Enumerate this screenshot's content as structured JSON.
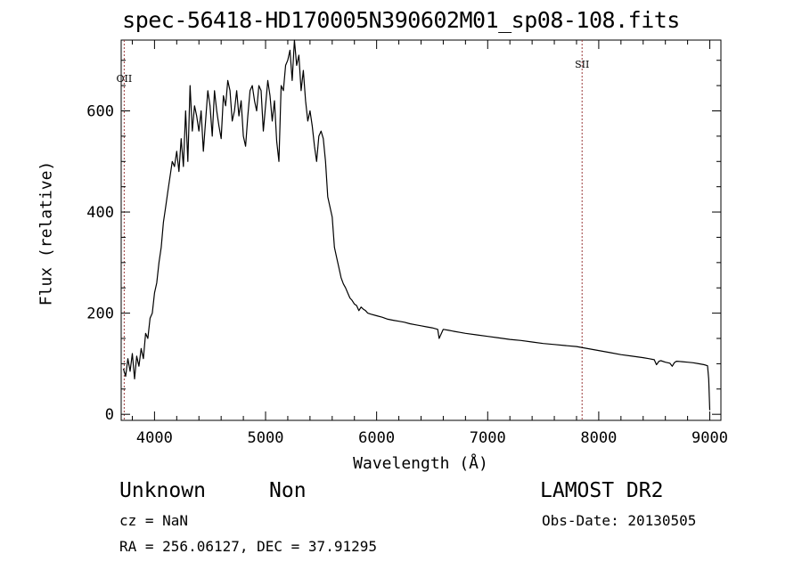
{
  "chart_data": {
    "type": "line",
    "title": "spec-56418-HD170005N390602M01_sp08-108.fits",
    "xlabel": "Wavelength (Å)",
    "ylabel": "Flux (relative)",
    "xlim": [
      3700,
      9100
    ],
    "ylim": [
      -12,
      740
    ],
    "xticks": [
      4000,
      5000,
      6000,
      7000,
      8000,
      9000
    ],
    "yticks": [
      0,
      200,
      400,
      600
    ],
    "grid": false,
    "line_color": "#000000",
    "series": [
      {
        "x": [
          3720,
          3740,
          3760,
          3780,
          3800,
          3820,
          3840,
          3860,
          3880,
          3900,
          3920,
          3940,
          3960,
          3980,
          4000,
          4020,
          4040,
          4060,
          4080,
          4100,
          4120,
          4140,
          4160,
          4180,
          4200,
          4220,
          4240,
          4260,
          4280,
          4300,
          4320,
          4340,
          4360,
          4380,
          4400,
          4420,
          4440,
          4460,
          4480,
          4500,
          4520,
          4540,
          4560,
          4580,
          4600,
          4620,
          4640,
          4660,
          4680,
          4700,
          4720,
          4740,
          4760,
          4780,
          4800,
          4820,
          4840,
          4860,
          4880,
          4900,
          4920,
          4940,
          4960,
          4980,
          5000,
          5020,
          5040,
          5060,
          5080,
          5100,
          5120,
          5140,
          5160,
          5180,
          5200,
          5220,
          5240,
          5260,
          5280,
          5300,
          5320,
          5340,
          5360,
          5380,
          5400,
          5420,
          5440,
          5460,
          5480,
          5500,
          5520,
          5540,
          5560,
          5580,
          5600,
          5620,
          5640,
          5660,
          5680,
          5700,
          5720,
          5740,
          5760,
          5780,
          5800,
          5820,
          5840,
          5860,
          5880,
          5900,
          5920,
          5950,
          6000,
          6050,
          6100,
          6150,
          6200,
          6250,
          6300,
          6350,
          6400,
          6450,
          6500,
          6550,
          6563,
          6600,
          6650,
          6700,
          6750,
          6800,
          6900,
          7000,
          7100,
          7200,
          7300,
          7400,
          7500,
          7600,
          7700,
          7800,
          7900,
          8000,
          8100,
          8200,
          8300,
          8400,
          8450,
          8500,
          8520,
          8542,
          8560,
          8600,
          8640,
          8662,
          8680,
          8700,
          8750,
          8800,
          8850,
          8900,
          8950,
          8980,
          8990,
          9000
        ],
        "y": [
          90,
          75,
          110,
          85,
          120,
          70,
          115,
          95,
          130,
          110,
          160,
          150,
          190,
          200,
          240,
          260,
          300,
          330,
          380,
          410,
          440,
          470,
          500,
          490,
          520,
          480,
          545,
          490,
          600,
          500,
          650,
          560,
          610,
          590,
          560,
          600,
          520,
          580,
          640,
          610,
          550,
          640,
          600,
          570,
          545,
          630,
          610,
          660,
          640,
          580,
          600,
          640,
          590,
          620,
          550,
          530,
          590,
          640,
          650,
          620,
          600,
          650,
          640,
          560,
          610,
          660,
          630,
          580,
          620,
          540,
          500,
          650,
          640,
          690,
          700,
          720,
          660,
          740,
          690,
          710,
          640,
          680,
          620,
          580,
          600,
          570,
          530,
          500,
          550,
          560,
          545,
          500,
          430,
          410,
          390,
          330,
          310,
          290,
          270,
          258,
          250,
          240,
          230,
          225,
          218,
          215,
          205,
          212,
          208,
          205,
          200,
          198,
          195,
          192,
          188,
          186,
          184,
          182,
          179,
          177,
          175,
          173,
          171,
          168,
          150,
          168,
          166,
          164,
          162,
          160,
          157,
          154,
          151,
          148,
          146,
          143,
          140,
          138,
          136,
          134,
          130,
          126,
          122,
          118,
          115,
          112,
          110,
          108,
          98,
          105,
          106,
          103,
          101,
          95,
          102,
          105,
          104,
          103,
          102,
          100,
          98,
          96,
          70,
          8
        ]
      }
    ],
    "annotations": [
      {
        "label": "OII",
        "x": 3727
      },
      {
        "label": "SII",
        "x": 7850
      }
    ],
    "annotation_line_color": "#9a3a3a"
  },
  "info": {
    "class": "Unknown",
    "subclass": "Non",
    "survey": "LAMOST DR2",
    "cz": "cz = NaN",
    "obsdate": "Obs-Date: 20130505",
    "radec": "RA = 256.06127, DEC =  37.91295"
  }
}
